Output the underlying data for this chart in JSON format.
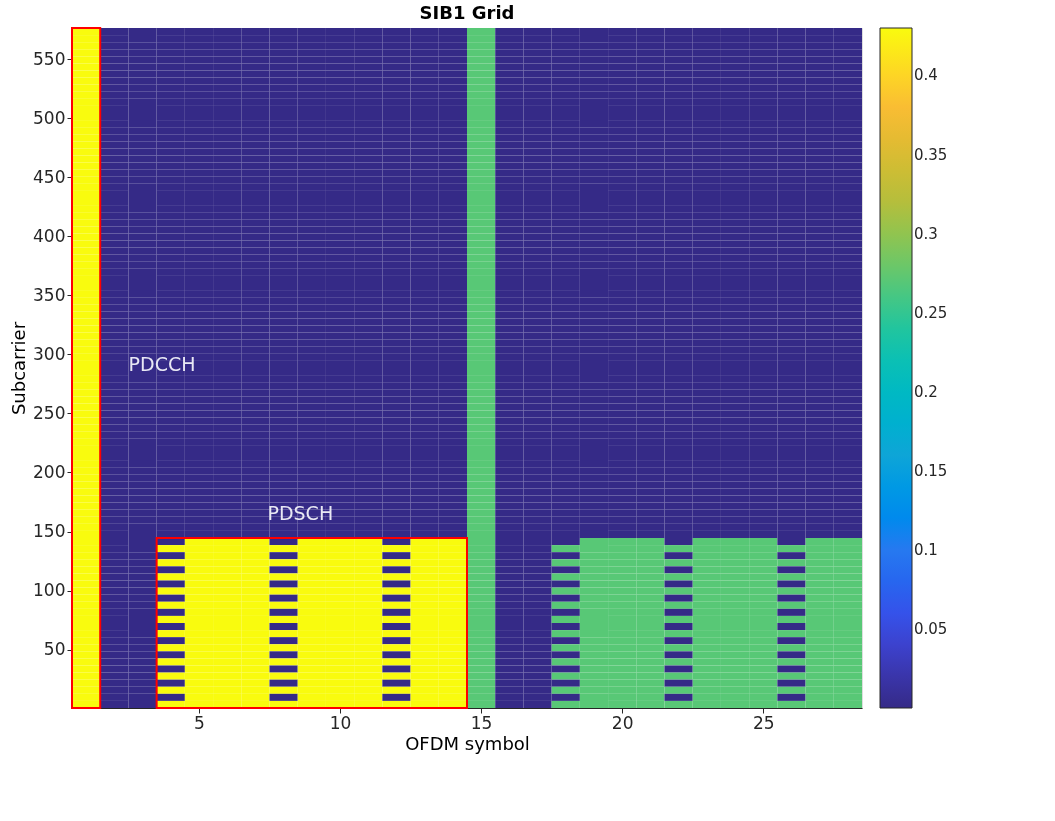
{
  "chart_data": {
    "type": "heatmap",
    "title": "SIB1 Grid",
    "xlabel": "OFDM symbol",
    "ylabel": "Subcarrier",
    "x": [
      1,
      2,
      3,
      4,
      5,
      6,
      7,
      8,
      9,
      10,
      11,
      12,
      13,
      14,
      15,
      16,
      17,
      18,
      19,
      20,
      21,
      22,
      23,
      24,
      25,
      26,
      27,
      28
    ],
    "xlim": [
      0.5,
      28.5
    ],
    "xticks": [
      5,
      10,
      15,
      20,
      25
    ],
    "ylim": [
      0.5,
      576.5
    ],
    "yticks": [
      50,
      100,
      150,
      200,
      250,
      300,
      350,
      400,
      450,
      500,
      550
    ],
    "clim": [
      0,
      0.43
    ],
    "cticks": [
      0.05,
      0.1,
      0.15,
      0.2,
      0.25,
      0.3,
      0.35,
      0.4
    ],
    "annotations": [
      "PDCCH",
      "PDSCH"
    ],
    "cells": [
      [
        0.43,
        0,
        0,
        0,
        0,
        0,
        0,
        0,
        0,
        0,
        0,
        0,
        0,
        0,
        0.27,
        0,
        0,
        0,
        0,
        0,
        0,
        0,
        0,
        0,
        0,
        0,
        0,
        0
      ],
      [
        0.43,
        0,
        0,
        0,
        0,
        0,
        0,
        0,
        0,
        0,
        0,
        0,
        0,
        0,
        0.27,
        0,
        0,
        0,
        0,
        0,
        0,
        0,
        0,
        0,
        0,
        0,
        0,
        0
      ],
      [
        0.43,
        0,
        0,
        0,
        0,
        0,
        0,
        0,
        0,
        0,
        0,
        0,
        0,
        0,
        0.27,
        0,
        0,
        0,
        0,
        0,
        0,
        0,
        0,
        0,
        0,
        0,
        0,
        0
      ],
      [
        0.43,
        0,
        0,
        0,
        0,
        0,
        0,
        0,
        0,
        0,
        0,
        0,
        0,
        0,
        0.27,
        0,
        0,
        0,
        0,
        0,
        0,
        0,
        0,
        0,
        0,
        0,
        0,
        0
      ],
      [
        0.43,
        0,
        0,
        0,
        0,
        0,
        0,
        0,
        0,
        0,
        0,
        0,
        0,
        0,
        0.27,
        0,
        0,
        0,
        0,
        0,
        0,
        0,
        0,
        0,
        0,
        0,
        0,
        0
      ],
      [
        0.43,
        0,
        0,
        0,
        0,
        0,
        0,
        0,
        0,
        0,
        0,
        0,
        0,
        0,
        0.27,
        0,
        0,
        0,
        0,
        0,
        0,
        0,
        0,
        0,
        0,
        0,
        0,
        0
      ],
      [
        0.43,
        0,
        0,
        0,
        0,
        0,
        0,
        0,
        0,
        0,
        0,
        0,
        0,
        0,
        0.27,
        0,
        0,
        0,
        0,
        0,
        0,
        0,
        0,
        0,
        0,
        0,
        0,
        0
      ],
      [
        0.43,
        0,
        0,
        0,
        0,
        0,
        0,
        0,
        0,
        0,
        0,
        0,
        0,
        0,
        0.27,
        0,
        0,
        0,
        0,
        0,
        0,
        0,
        0,
        0,
        0,
        0,
        0,
        0
      ],
      [
        0.43,
        0,
        0,
        0,
        0,
        0,
        0,
        0,
        0,
        0,
        0,
        0,
        0,
        0,
        0.27,
        0,
        0,
        0,
        0,
        0,
        0,
        0,
        0,
        0,
        0,
        0,
        0,
        0
      ],
      [
        0.43,
        0,
        0,
        0,
        0,
        0,
        0,
        0,
        0,
        0,
        0,
        0,
        0,
        0,
        0.27,
        0,
        0,
        0,
        0,
        0,
        0,
        0,
        0,
        0,
        0,
        0,
        0,
        0
      ],
      [
        0.43,
        0,
        0,
        0,
        0,
        0,
        0,
        0,
        0,
        0,
        0,
        0,
        0,
        0,
        0.27,
        0,
        0,
        0,
        0,
        0,
        0,
        0,
        0,
        0,
        0,
        0,
        0,
        0
      ],
      [
        0.43,
        0,
        0,
        0,
        0,
        0,
        0,
        0,
        0,
        0,
        0,
        0,
        0,
        0,
        0.27,
        0,
        0,
        0,
        0,
        0,
        0,
        0,
        0,
        0,
        0,
        0,
        0,
        0
      ],
      [
        0.43,
        0,
        0,
        0,
        0,
        0,
        0,
        0,
        0,
        0,
        0,
        0,
        0,
        0,
        0.27,
        0,
        0,
        0,
        0,
        0,
        0,
        0,
        0,
        0,
        0,
        0,
        0,
        0
      ],
      [
        0.43,
        0,
        0,
        0,
        0,
        0,
        0,
        0,
        0,
        0,
        0,
        0,
        0,
        0,
        0.27,
        0,
        0,
        0,
        0,
        0,
        0,
        0,
        0,
        0,
        0,
        0,
        0,
        0
      ],
      [
        0.43,
        0,
        0,
        0,
        0,
        0,
        0,
        0,
        0,
        0,
        0,
        0,
        0,
        0,
        0.27,
        0,
        0,
        0,
        0,
        0,
        0,
        0,
        0,
        0,
        0,
        0,
        0,
        0
      ],
      [
        0.43,
        0,
        0,
        0,
        0,
        0,
        0,
        0,
        0,
        0,
        0,
        0,
        0,
        0,
        0.27,
        0,
        0,
        0,
        0,
        0,
        0,
        0,
        0,
        0,
        0,
        0,
        0,
        0
      ],
      [
        0.43,
        0,
        0,
        0,
        0,
        0,
        0,
        0,
        0,
        0,
        0,
        0,
        0,
        0,
        0.27,
        0,
        0,
        0,
        0,
        0,
        0,
        0,
        0,
        0,
        0,
        0,
        0,
        0
      ],
      [
        0.43,
        0,
        0,
        0,
        0,
        0,
        0,
        0,
        0,
        0,
        0,
        0,
        0,
        0,
        0.27,
        0,
        0,
        0,
        0,
        0,
        0,
        0,
        0,
        0,
        0,
        0,
        0,
        0
      ],
      [
        0.43,
        0,
        0,
        0,
        0,
        0,
        0,
        0,
        0,
        0,
        0,
        0,
        0,
        0,
        0.27,
        0,
        0,
        0,
        0,
        0,
        0,
        0,
        0,
        0,
        0,
        0,
        0,
        0
      ],
      [
        0.43,
        0,
        0,
        0,
        0,
        0,
        0,
        0,
        0,
        0,
        0,
        0,
        0,
        0,
        0.27,
        0,
        0,
        0,
        0,
        0,
        0,
        0,
        0,
        0,
        0,
        0,
        0,
        0
      ],
      [
        0.43,
        0,
        0,
        0,
        0,
        0,
        0,
        0,
        0,
        0,
        0,
        0,
        0,
        0,
        0.27,
        0,
        0,
        0,
        0,
        0,
        0,
        0,
        0,
        0,
        0,
        0,
        0,
        0
      ],
      [
        0.43,
        0,
        0,
        0,
        0,
        0,
        0,
        0,
        0,
        0,
        0,
        0,
        0,
        0,
        0.27,
        0,
        0,
        0,
        0,
        0,
        0,
        0,
        0,
        0,
        0,
        0,
        0,
        0
      ],
      [
        0.43,
        0,
        0,
        0,
        0,
        0,
        0,
        0,
        0,
        0,
        0,
        0,
        0,
        0,
        0.27,
        0,
        0,
        0,
        0,
        0,
        0,
        0,
        0,
        0,
        0,
        0,
        0,
        0
      ],
      [
        0.43,
        0,
        0,
        0,
        0,
        0,
        0,
        0,
        0,
        0,
        0,
        0,
        0,
        0,
        0.27,
        0,
        0,
        0,
        0,
        0,
        0,
        0,
        0,
        0,
        0,
        0,
        0,
        0
      ],
      [
        0.43,
        0,
        0,
        0,
        0,
        0,
        0,
        0,
        0,
        0,
        0,
        0,
        0,
        0,
        0.27,
        0,
        0,
        0,
        0,
        0,
        0,
        0,
        0,
        0,
        0,
        0,
        0,
        0
      ],
      [
        0.43,
        0,
        0,
        0,
        0,
        0,
        0,
        0,
        0,
        0,
        0,
        0,
        0,
        0,
        0.27,
        0,
        0,
        0,
        0,
        0,
        0,
        0,
        0,
        0,
        0,
        0,
        0,
        0
      ],
      [
        0.43,
        0,
        0,
        0,
        0,
        0,
        0,
        0,
        0,
        0,
        0,
        0,
        0,
        0,
        0.27,
        0,
        0,
        0,
        0,
        0,
        0,
        0,
        0,
        0,
        0,
        0,
        0,
        0
      ],
      [
        0.43,
        0,
        0,
        0,
        0,
        0,
        0,
        0,
        0,
        0,
        0,
        0,
        0,
        0,
        0.27,
        0,
        0,
        0,
        0,
        0,
        0,
        0,
        0,
        0,
        0,
        0,
        0,
        0
      ],
      [
        0.43,
        0,
        0,
        0,
        0,
        0,
        0,
        0,
        0,
        0,
        0,
        0,
        0,
        0,
        0.27,
        0,
        0,
        0,
        0,
        0,
        0,
        0,
        0,
        0,
        0,
        0,
        0,
        0
      ],
      [
        0.43,
        0,
        0,
        0,
        0,
        0,
        0,
        0,
        0,
        0,
        0,
        0,
        0,
        0,
        0.27,
        0,
        0,
        0,
        0,
        0,
        0,
        0,
        0,
        0,
        0,
        0,
        0,
        0
      ],
      [
        0.43,
        0,
        0,
        0,
        0,
        0,
        0,
        0,
        0,
        0,
        0,
        0,
        0,
        0,
        0.27,
        0,
        0,
        0,
        0,
        0,
        0,
        0,
        0,
        0,
        0,
        0,
        0,
        0
      ],
      [
        0.43,
        0,
        0,
        0,
        0,
        0,
        0,
        0,
        0,
        0,
        0,
        0,
        0,
        0,
        0.27,
        0,
        0,
        0,
        0,
        0,
        0,
        0,
        0,
        0,
        0,
        0,
        0,
        0
      ],
      [
        0.43,
        0,
        0,
        0,
        0,
        0,
        0,
        0,
        0,
        0,
        0,
        0,
        0,
        0,
        0.27,
        0,
        0,
        0,
        0,
        0,
        0,
        0,
        0,
        0,
        0,
        0,
        0,
        0
      ],
      [
        0.43,
        0,
        0,
        0,
        0,
        0,
        0,
        0,
        0,
        0,
        0,
        0,
        0,
        0,
        0.27,
        0,
        0,
        0,
        0,
        0,
        0,
        0,
        0,
        0,
        0,
        0,
        0,
        0
      ],
      [
        0.43,
        0,
        0,
        0,
        0,
        0,
        0,
        0,
        0,
        0,
        0,
        0,
        0,
        0,
        0.27,
        0,
        0,
        0,
        0,
        0,
        0,
        0,
        0,
        0,
        0,
        0,
        0,
        0
      ],
      [
        0.43,
        0,
        0,
        0,
        0,
        0,
        0,
        0,
        0,
        0,
        0,
        0,
        0,
        0,
        0.27,
        0,
        0,
        0,
        0,
        0,
        0,
        0,
        0,
        0,
        0,
        0,
        0,
        0
      ],
      [
        0.43,
        0,
        0,
        0,
        0,
        0,
        0,
        0,
        0,
        0,
        0,
        0,
        0,
        0,
        0.27,
        0,
        0,
        0,
        0,
        0,
        0,
        0,
        0,
        0,
        0,
        0,
        0,
        0
      ],
      [
        0.43,
        0,
        0,
        0,
        0,
        0,
        0,
        0,
        0,
        0,
        0,
        0,
        0,
        0,
        0.27,
        0,
        0,
        0,
        0,
        0,
        0,
        0,
        0,
        0,
        0,
        0,
        0,
        0
      ],
      [
        0.43,
        0,
        0,
        0,
        0,
        0,
        0,
        0,
        0,
        0,
        0,
        0,
        0,
        0,
        0.27,
        0,
        0,
        0,
        0,
        0,
        0,
        0,
        0,
        0,
        0,
        0,
        0,
        0
      ],
      [
        0.43,
        0,
        0,
        0,
        0,
        0,
        0,
        0,
        0,
        0,
        0,
        0,
        0,
        0,
        0.27,
        0,
        0,
        0,
        0,
        0,
        0,
        0,
        0,
        0,
        0,
        0,
        0,
        0
      ],
      [
        0.43,
        0,
        0,
        0,
        0,
        0,
        0,
        0,
        0,
        0,
        0,
        0,
        0,
        0,
        0.27,
        0,
        0,
        0,
        0,
        0,
        0,
        0,
        0,
        0,
        0,
        0,
        0,
        0
      ],
      [
        0.43,
        0,
        0,
        0,
        0,
        0,
        0,
        0,
        0,
        0,
        0,
        0,
        0,
        0,
        0.27,
        0,
        0,
        0,
        0,
        0,
        0,
        0,
        0,
        0,
        0,
        0,
        0,
        0
      ],
      [
        0.43,
        0,
        0,
        0,
        0,
        0,
        0,
        0,
        0,
        0,
        0,
        0,
        0,
        0,
        0.27,
        0,
        0,
        0,
        0,
        0,
        0,
        0,
        0,
        0,
        0,
        0,
        0,
        0
      ],
      [
        0.43,
        0,
        0,
        0,
        0,
        0,
        0,
        0,
        0,
        0,
        0,
        0,
        0,
        0,
        0.27,
        0,
        0,
        0,
        0,
        0,
        0,
        0,
        0,
        0,
        0,
        0,
        0,
        0
      ],
      [
        0.43,
        0,
        0,
        0,
        0,
        0,
        0,
        0,
        0,
        0,
        0,
        0,
        0,
        0,
        0.27,
        0,
        0,
        0,
        0,
        0,
        0,
        0,
        0,
        0,
        0,
        0,
        0,
        0
      ],
      [
        0.43,
        0,
        0,
        0,
        0,
        0,
        0,
        0,
        0,
        0,
        0,
        0,
        0,
        0,
        0.27,
        0,
        0,
        0,
        0,
        0,
        0,
        0,
        0,
        0,
        0,
        0,
        0,
        0
      ],
      [
        0.43,
        0,
        0,
        0,
        0,
        0,
        0,
        0,
        0,
        0,
        0,
        0,
        0,
        0,
        0.27,
        0,
        0,
        0,
        0,
        0,
        0,
        0,
        0,
        0,
        0,
        0,
        0,
        0
      ],
      [
        0.43,
        0,
        0,
        0,
        0,
        0,
        0,
        0,
        0,
        0,
        0,
        0,
        0,
        0,
        0.27,
        0,
        0,
        0,
        0,
        0,
        0,
        0,
        0,
        0,
        0,
        0,
        0,
        0
      ],
      [
        0.43,
        0,
        0,
        0,
        0,
        0,
        0,
        0,
        0,
        0,
        0,
        0,
        0,
        0,
        0.27,
        0,
        0,
        0,
        0,
        0,
        0,
        0,
        0,
        0,
        0,
        0,
        0,
        0
      ],
      [
        0.43,
        0,
        0,
        0,
        0,
        0,
        0,
        0,
        0,
        0,
        0,
        0,
        0,
        0,
        0.27,
        0,
        0,
        0,
        0,
        0,
        0,
        0,
        0,
        0,
        0,
        0,
        0,
        0
      ],
      [
        0.43,
        0,
        0,
        0,
        0,
        0,
        0,
        0,
        0,
        0,
        0,
        0,
        0,
        0,
        0.27,
        0,
        0,
        0,
        0,
        0,
        0,
        0,
        0,
        0,
        0,
        0,
        0,
        0
      ],
      [
        0.43,
        0,
        0,
        0,
        0,
        0,
        0,
        0,
        0,
        0,
        0,
        0,
        0,
        0,
        0.27,
        0,
        0,
        0,
        0,
        0,
        0,
        0,
        0,
        0,
        0,
        0,
        0,
        0
      ],
      [
        0.43,
        0,
        0,
        0,
        0,
        0,
        0,
        0,
        0,
        0,
        0,
        0,
        0,
        0,
        0.27,
        0,
        0,
        0,
        0,
        0,
        0,
        0,
        0,
        0,
        0,
        0,
        0,
        0
      ],
      [
        0.43,
        0,
        0,
        0,
        0,
        0,
        0,
        0,
        0,
        0,
        0,
        0,
        0,
        0,
        0.27,
        0,
        0,
        0,
        0,
        0,
        0,
        0,
        0,
        0,
        0,
        0,
        0,
        0
      ],
      [
        0.43,
        0,
        0,
        0,
        0,
        0,
        0,
        0,
        0,
        0,
        0,
        0,
        0,
        0,
        0.27,
        0,
        0,
        0,
        0,
        0,
        0,
        0,
        0,
        0,
        0,
        0,
        0,
        0
      ],
      [
        0.43,
        0,
        0,
        0,
        0,
        0,
        0,
        0,
        0,
        0,
        0,
        0,
        0,
        0,
        0.27,
        0,
        0,
        0,
        0,
        0,
        0,
        0,
        0,
        0,
        0,
        0,
        0,
        0
      ],
      [
        0.43,
        0,
        0,
        0,
        0,
        0,
        0,
        0,
        0,
        0,
        0,
        0,
        0,
        0,
        0.27,
        0,
        0,
        0,
        0,
        0,
        0,
        0,
        0,
        0,
        0,
        0,
        0,
        0
      ],
      [
        0.43,
        0,
        0,
        0,
        0,
        0,
        0,
        0,
        0,
        0,
        0,
        0,
        0,
        0,
        0.27,
        0,
        0,
        0,
        0,
        0,
        0,
        0,
        0,
        0,
        0,
        0,
        0,
        0
      ],
      [
        0.43,
        0,
        0,
        0,
        0,
        0,
        0,
        0,
        0,
        0,
        0,
        0,
        0,
        0,
        0.27,
        0,
        0,
        0,
        0,
        0,
        0,
        0,
        0,
        0,
        0,
        0,
        0,
        0
      ],
      [
        0.43,
        0,
        0,
        0,
        0,
        0,
        0,
        0,
        0,
        0,
        0,
        0,
        0,
        0,
        0.27,
        0,
        0,
        0,
        0,
        0,
        0,
        0,
        0,
        0,
        0,
        0,
        0,
        0
      ],
      [
        0.43,
        0,
        0,
        0,
        0,
        0,
        0,
        0,
        0,
        0,
        0,
        0,
        0,
        0,
        0.27,
        0,
        0,
        0,
        0,
        0,
        0,
        0,
        0,
        0,
        0,
        0,
        0,
        0
      ],
      [
        0.43,
        0,
        0,
        0,
        0,
        0,
        0,
        0,
        0,
        0,
        0,
        0,
        0,
        0,
        0.27,
        0,
        0,
        0,
        0,
        0,
        0,
        0,
        0,
        0,
        0,
        0,
        0,
        0
      ],
      [
        0.43,
        0,
        0,
        0,
        0,
        0,
        0,
        0,
        0,
        0,
        0,
        0,
        0,
        0,
        0.27,
        0,
        0,
        0,
        0,
        0,
        0,
        0,
        0,
        0,
        0,
        0,
        0,
        0
      ],
      [
        0.43,
        0,
        0,
        0,
        0,
        0,
        0,
        0,
        0,
        0,
        0,
        0,
        0,
        0,
        0.27,
        0,
        0,
        0,
        0,
        0,
        0,
        0,
        0,
        0,
        0,
        0,
        0,
        0
      ],
      [
        0.43,
        0,
        0,
        0,
        0,
        0,
        0,
        0,
        0,
        0,
        0,
        0,
        0,
        0,
        0.27,
        0,
        0,
        0,
        0,
        0,
        0,
        0,
        0,
        0,
        0,
        0,
        0,
        0
      ],
      [
        0.43,
        0,
        0,
        0,
        0,
        0,
        0,
        0,
        0,
        0,
        0,
        0,
        0,
        0,
        0.27,
        0,
        0,
        0,
        0,
        0,
        0,
        0,
        0,
        0,
        0,
        0,
        0,
        0
      ],
      [
        0.43,
        0,
        0,
        0,
        0,
        0,
        0,
        0,
        0,
        0,
        0,
        0,
        0,
        0,
        0.27,
        0,
        0,
        0,
        0,
        0,
        0,
        0,
        0,
        0,
        0,
        0,
        0,
        0
      ],
      [
        0.43,
        0,
        0,
        0,
        0,
        0,
        0,
        0,
        0,
        0,
        0,
        0,
        0,
        0,
        0.27,
        0,
        0,
        0,
        0,
        0,
        0,
        0,
        0,
        0,
        0,
        0,
        0,
        0
      ],
      [
        0.43,
        0,
        0,
        0,
        0,
        0,
        0,
        0,
        0,
        0,
        0,
        0,
        0,
        0,
        0.27,
        0,
        0,
        0,
        0,
        0,
        0,
        0,
        0,
        0,
        0,
        0,
        0,
        0
      ],
      [
        0.43,
        0,
        0,
        0,
        0,
        0,
        0,
        0,
        0,
        0,
        0,
        0,
        0,
        0,
        0.27,
        0,
        0,
        0,
        0,
        0,
        0,
        0,
        0,
        0,
        0,
        0,
        0,
        0
      ],
      [
        0.43,
        0,
        0,
        0,
        0,
        0,
        0,
        0,
        0,
        0,
        0,
        0,
        0,
        0,
        0.27,
        0,
        0,
        0,
        0,
        0,
        0,
        0,
        0,
        0,
        0,
        0,
        0,
        0
      ],
      [
        0.43,
        0,
        0,
        0,
        0,
        0,
        0,
        0,
        0,
        0,
        0,
        0,
        0,
        0,
        0.27,
        0,
        0,
        0,
        0,
        0,
        0,
        0,
        0,
        0,
        0,
        0,
        0,
        0
      ],
      [
        0.43,
        0,
        0,
        0,
        0.43,
        0.43,
        0.43,
        0,
        0.43,
        0.43,
        0.43,
        0,
        0.43,
        0.43,
        0.27,
        0,
        0,
        0,
        0.27,
        0.27,
        0.27,
        0,
        0.27,
        0.27,
        0.27,
        0,
        0.27,
        0.27
      ],
      [
        0.43,
        0,
        0,
        0.43,
        0.43,
        0.43,
        0.43,
        0.43,
        0.43,
        0.43,
        0.43,
        0.43,
        0.43,
        0.43,
        0.27,
        0,
        0,
        0.27,
        0.27,
        0.27,
        0.27,
        0.27,
        0.27,
        0.27,
        0.27,
        0.27,
        0.27,
        0.27
      ],
      [
        0.43,
        0,
        0,
        0,
        0.43,
        0.43,
        0.43,
        0,
        0.43,
        0.43,
        0.43,
        0,
        0.43,
        0.43,
        0.27,
        0,
        0,
        0,
        0.27,
        0.27,
        0.27,
        0,
        0.27,
        0.27,
        0.27,
        0,
        0.27,
        0.27
      ],
      [
        0.43,
        0,
        0,
        0.43,
        0.43,
        0.43,
        0.43,
        0.43,
        0.43,
        0.43,
        0.43,
        0.43,
        0.43,
        0.43,
        0.27,
        0,
        0,
        0.27,
        0.27,
        0.27,
        0.27,
        0.27,
        0.27,
        0.27,
        0.27,
        0.27,
        0.27,
        0.27
      ],
      [
        0.43,
        0,
        0,
        0,
        0.43,
        0.43,
        0.43,
        0,
        0.43,
        0.43,
        0.43,
        0,
        0.43,
        0.43,
        0.27,
        0,
        0,
        0,
        0.27,
        0.27,
        0.27,
        0,
        0.27,
        0.27,
        0.27,
        0,
        0.27,
        0.27
      ],
      [
        0.43,
        0,
        0,
        0.43,
        0.43,
        0.43,
        0.43,
        0.43,
        0.43,
        0.43,
        0.43,
        0.43,
        0.43,
        0.43,
        0.27,
        0,
        0,
        0.27,
        0.27,
        0.27,
        0.27,
        0.27,
        0.27,
        0.27,
        0.27,
        0.27,
        0.27,
        0.27
      ],
      [
        0.43,
        0,
        0,
        0,
        0.43,
        0.43,
        0.43,
        0,
        0.43,
        0.43,
        0.43,
        0,
        0.43,
        0.43,
        0.27,
        0,
        0,
        0,
        0.27,
        0.27,
        0.27,
        0,
        0.27,
        0.27,
        0.27,
        0,
        0.27,
        0.27
      ],
      [
        0.43,
        0,
        0,
        0.43,
        0.43,
        0.43,
        0.43,
        0.43,
        0.43,
        0.43,
        0.43,
        0.43,
        0.43,
        0.43,
        0.27,
        0,
        0,
        0.27,
        0.27,
        0.27,
        0.27,
        0.27,
        0.27,
        0.27,
        0.27,
        0.27,
        0.27,
        0.27
      ],
      [
        0.43,
        0,
        0,
        0,
        0.43,
        0.43,
        0.43,
        0,
        0.43,
        0.43,
        0.43,
        0,
        0.43,
        0.43,
        0.27,
        0,
        0,
        0,
        0.27,
        0.27,
        0.27,
        0,
        0.27,
        0.27,
        0.27,
        0,
        0.27,
        0.27
      ],
      [
        0.43,
        0,
        0,
        0.43,
        0.43,
        0.43,
        0.43,
        0.43,
        0.43,
        0.43,
        0.43,
        0.43,
        0.43,
        0.43,
        0.27,
        0,
        0,
        0.27,
        0.27,
        0.27,
        0.27,
        0.27,
        0.27,
        0.27,
        0.27,
        0.27,
        0.27,
        0.27
      ],
      [
        0.43,
        0,
        0,
        0,
        0.43,
        0.43,
        0.43,
        0,
        0.43,
        0.43,
        0.43,
        0,
        0.43,
        0.43,
        0.27,
        0,
        0,
        0,
        0.27,
        0.27,
        0.27,
        0,
        0.27,
        0.27,
        0.27,
        0,
        0.27,
        0.27
      ],
      [
        0.43,
        0,
        0,
        0.43,
        0.43,
        0.43,
        0.43,
        0.43,
        0.43,
        0.43,
        0.43,
        0.43,
        0.43,
        0.43,
        0.27,
        0,
        0,
        0.27,
        0.27,
        0.27,
        0.27,
        0.27,
        0.27,
        0.27,
        0.27,
        0.27,
        0.27,
        0.27
      ],
      [
        0.43,
        0,
        0,
        0,
        0.43,
        0.43,
        0.43,
        0,
        0.43,
        0.43,
        0.43,
        0,
        0.43,
        0.43,
        0.27,
        0,
        0,
        0,
        0.27,
        0.27,
        0.27,
        0,
        0.27,
        0.27,
        0.27,
        0,
        0.27,
        0.27
      ],
      [
        0.43,
        0,
        0,
        0.43,
        0.43,
        0.43,
        0.43,
        0.43,
        0.43,
        0.43,
        0.43,
        0.43,
        0.43,
        0.43,
        0.27,
        0,
        0,
        0.27,
        0.27,
        0.27,
        0.27,
        0.27,
        0.27,
        0.27,
        0.27,
        0.27,
        0.27,
        0.27
      ],
      [
        0.43,
        0,
        0,
        0,
        0.43,
        0.43,
        0.43,
        0,
        0.43,
        0.43,
        0.43,
        0,
        0.43,
        0.43,
        0.27,
        0,
        0,
        0,
        0.27,
        0.27,
        0.27,
        0,
        0.27,
        0.27,
        0.27,
        0,
        0.27,
        0.27
      ],
      [
        0.43,
        0,
        0,
        0.43,
        0.43,
        0.43,
        0.43,
        0.43,
        0.43,
        0.43,
        0.43,
        0.43,
        0.43,
        0.43,
        0.27,
        0,
        0,
        0.27,
        0.27,
        0.27,
        0.27,
        0.27,
        0.27,
        0.27,
        0.27,
        0.27,
        0.27,
        0.27
      ],
      [
        0.43,
        0,
        0,
        0,
        0.43,
        0.43,
        0.43,
        0,
        0.43,
        0.43,
        0.43,
        0,
        0.43,
        0.43,
        0.27,
        0,
        0,
        0,
        0.27,
        0.27,
        0.27,
        0,
        0.27,
        0.27,
        0.27,
        0,
        0.27,
        0.27
      ],
      [
        0.43,
        0,
        0,
        0.43,
        0.43,
        0.43,
        0.43,
        0.43,
        0.43,
        0.43,
        0.43,
        0.43,
        0.43,
        0.43,
        0.27,
        0,
        0,
        0.27,
        0.27,
        0.27,
        0.27,
        0.27,
        0.27,
        0.27,
        0.27,
        0.27,
        0.27,
        0.27
      ],
      [
        0.43,
        0,
        0,
        0,
        0.43,
        0.43,
        0.43,
        0,
        0.43,
        0.43,
        0.43,
        0,
        0.43,
        0.43,
        0.27,
        0,
        0,
        0,
        0.27,
        0.27,
        0.27,
        0,
        0.27,
        0.27,
        0.27,
        0,
        0.27,
        0.27
      ],
      [
        0.43,
        0,
        0,
        0.43,
        0.43,
        0.43,
        0.43,
        0.43,
        0.43,
        0.43,
        0.43,
        0.43,
        0.43,
        0.43,
        0.27,
        0,
        0,
        0.27,
        0.27,
        0.27,
        0.27,
        0.27,
        0.27,
        0.27,
        0.27,
        0.27,
        0.27,
        0.27
      ],
      [
        0.43,
        0,
        0,
        0,
        0.43,
        0.43,
        0.43,
        0,
        0.43,
        0.43,
        0.43,
        0,
        0.43,
        0.43,
        0.27,
        0,
        0,
        0,
        0.27,
        0.27,
        0.27,
        0,
        0.27,
        0.27,
        0.27,
        0,
        0.27,
        0.27
      ],
      [
        0.43,
        0,
        0,
        0.43,
        0.43,
        0.43,
        0.43,
        0.43,
        0.43,
        0.43,
        0.43,
        0.43,
        0.43,
        0.43,
        0.27,
        0,
        0,
        0.27,
        0.27,
        0.27,
        0.27,
        0.27,
        0.27,
        0.27,
        0.27,
        0.27,
        0.27,
        0.27
      ],
      [
        0.43,
        0,
        0,
        0,
        0.43,
        0.43,
        0.43,
        0,
        0.43,
        0.43,
        0.43,
        0,
        0.43,
        0.43,
        0.27,
        0,
        0,
        0,
        0.27,
        0.27,
        0.27,
        0,
        0.27,
        0.27,
        0.27,
        0,
        0.27,
        0.27
      ],
      [
        0.43,
        0,
        0,
        0.43,
        0.43,
        0.43,
        0.43,
        0.43,
        0.43,
        0.43,
        0.43,
        0.43,
        0.43,
        0.43,
        0.27,
        0,
        0,
        0.27,
        0.27,
        0.27,
        0.27,
        0.27,
        0.27,
        0.27,
        0.27,
        0.27,
        0.27,
        0.27
      ]
    ]
  }
}
